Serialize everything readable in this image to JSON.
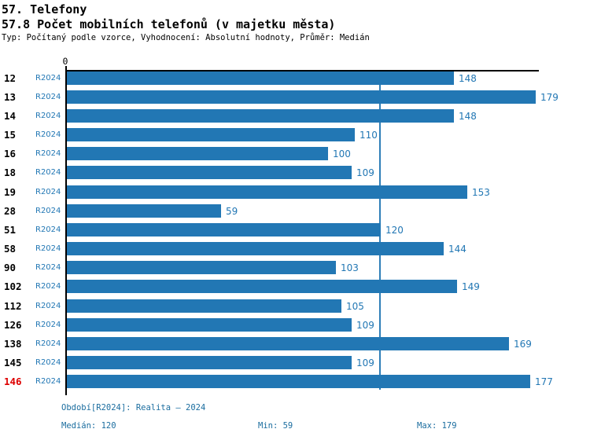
{
  "header": {
    "title": "57. Telefony",
    "subtitle": "57.8 Počet mobilních telefonů (v majetku města)",
    "meta": "Typ: Počítaný podle vzorce, Vyhodnocení: Absolutní hodnoty, Průměr: Medián"
  },
  "chart_data": {
    "type": "bar",
    "orientation": "horizontal",
    "title": "57.8 Počet mobilních telefonů (v majetku města)",
    "categories": [
      "12",
      "13",
      "14",
      "15",
      "16",
      "18",
      "19",
      "28",
      "51",
      "58",
      "90",
      "102",
      "112",
      "126",
      "138",
      "145",
      "146"
    ],
    "series": [
      {
        "name": "R2024",
        "values": [
          148,
          179,
          148,
          110,
          100,
          109,
          153,
          59,
          120,
          144,
          103,
          149,
          105,
          109,
          169,
          109,
          177
        ]
      }
    ],
    "highlighted_category": "146",
    "axis": {
      "tick_zero": "0",
      "xlim": [
        0,
        180
      ],
      "median_reference_line": 120,
      "grid": false
    },
    "colors": {
      "bar": "#2277b4",
      "median_line": "#2e7fb8",
      "highlight_label": "#dd0000"
    },
    "stats": {
      "median": 120,
      "min": 59,
      "max": 179
    }
  },
  "footer": {
    "period": "Období[R2024]: Realita – 2024",
    "median": "Medián: 120",
    "min": "Min: 59",
    "max": "Max: 179"
  }
}
